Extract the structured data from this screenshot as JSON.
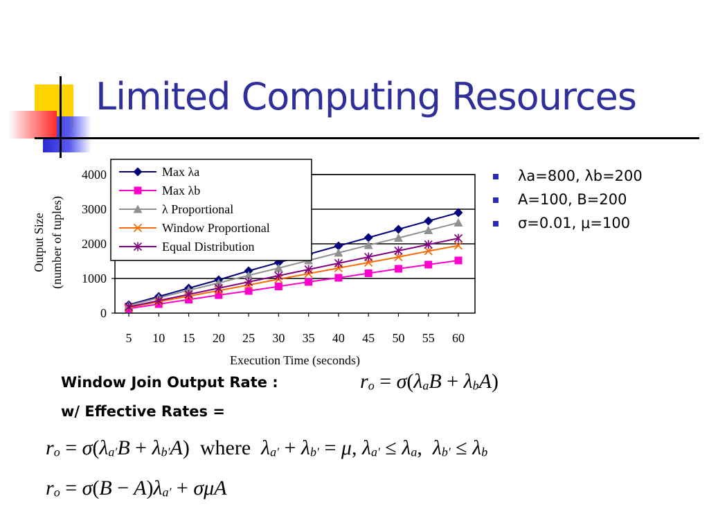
{
  "slide": {
    "title": "Limited Computing Resources",
    "bullets": [
      "λa=800, λb=200",
      "A=100, B=200",
      "σ=0.01, μ=100"
    ],
    "formula_label_1": "Window Join Output Rate :",
    "formula_label_2": "w/ Effective Rates =",
    "word_where": "where"
  },
  "colors": {
    "title": "#2f2f9c",
    "bullet": "#2a2ab8"
  },
  "chart_data": {
    "type": "line",
    "xlabel": "Execution Time (seconds)",
    "ylabel": [
      "Output Size",
      "(number of tuples)"
    ],
    "x": [
      5,
      10,
      15,
      20,
      25,
      30,
      35,
      40,
      45,
      50,
      55,
      60
    ],
    "y_ticks": [
      0,
      1000,
      2000,
      3000,
      4000
    ],
    "ylim": [
      0,
      4000
    ],
    "grid": "horizontal",
    "legend_position": "top-left",
    "series": [
      {
        "name": "Max λa",
        "color": "#00007a",
        "marker": "diamond",
        "values": [
          240,
          480,
          720,
          960,
          1220,
          1460,
          1700,
          1940,
          2180,
          2420,
          2660,
          2900
        ]
      },
      {
        "name": "Max λb",
        "color": "#ff00cc",
        "marker": "square",
        "values": [
          130,
          260,
          390,
          520,
          640,
          770,
          900,
          1020,
          1150,
          1280,
          1400,
          1520
        ]
      },
      {
        "name": "λ Proportional",
        "color": "#909090",
        "marker": "triangle",
        "values": [
          220,
          440,
          660,
          870,
          1090,
          1300,
          1520,
          1740,
          1960,
          2170,
          2390,
          2610
        ]
      },
      {
        "name": "Window Proportional",
        "color": "#ff6a00",
        "marker": "x",
        "values": [
          160,
          330,
          490,
          650,
          810,
          980,
          1140,
          1300,
          1460,
          1620,
          1790,
          1950
        ]
      },
      {
        "name": "Equal Distribution",
        "color": "#800080",
        "marker": "star",
        "values": [
          180,
          360,
          540,
          720,
          900,
          1080,
          1260,
          1440,
          1620,
          1800,
          1980,
          2160
        ]
      }
    ]
  }
}
